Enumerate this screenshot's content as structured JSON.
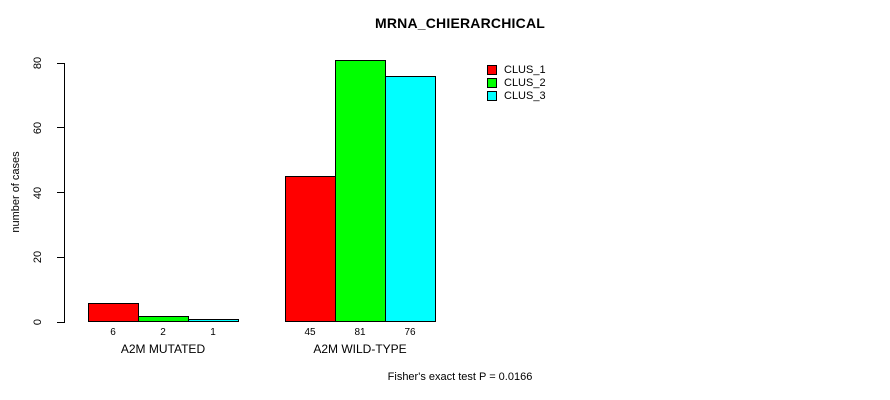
{
  "chart_data": {
    "type": "bar",
    "title": "MRNA_CHIERARCHICAL",
    "ylabel": "number of cases",
    "xlabel": "",
    "categories": [
      "A2M MUTATED",
      "A2M WILD-TYPE"
    ],
    "series": [
      {
        "name": "CLUS_1",
        "color": "#ff0000",
        "values": [
          6,
          45
        ]
      },
      {
        "name": "CLUS_2",
        "color": "#00ff00",
        "values": [
          2,
          81
        ]
      },
      {
        "name": "CLUS_3",
        "color": "#00ffff",
        "values": [
          1,
          76
        ]
      }
    ],
    "bar_value_labels": [
      [
        "6",
        "2",
        "1"
      ],
      [
        "45",
        "81",
        "76"
      ]
    ],
    "yticks": [
      0,
      20,
      40,
      60,
      80
    ],
    "ylim": [
      0,
      80
    ],
    "grid": false,
    "legend_position": "top-right",
    "annotation": "Fisher's exact test P = 0.0166"
  },
  "colors": {
    "background": "#ffffff",
    "axis": "#000000",
    "text": "#000000"
  }
}
